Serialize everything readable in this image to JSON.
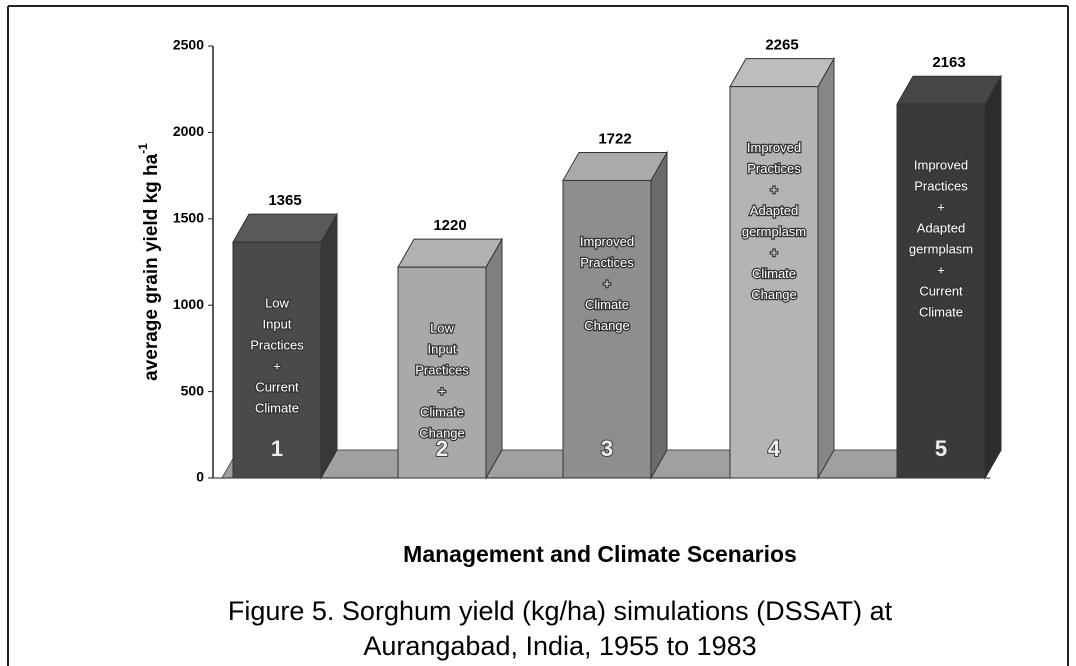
{
  "chart_data": {
    "type": "bar3d",
    "y_label": "average grain yield kg ha",
    "y_label_superscript": "-1",
    "x_label": "Management and Climate Scenarios",
    "caption": [
      "Figure 5. Sorghum yield (kg/ha) simulations (DSSAT) at",
      "Aurangabad, India, 1955 to 1983"
    ],
    "categories": [
      "1",
      "2",
      "3",
      "4",
      "5"
    ],
    "values": [
      1365,
      1220,
      1722,
      2265,
      2163
    ],
    "descriptions": [
      [
        "Low",
        "Input",
        "Practices",
        "+",
        "Current",
        "Climate"
      ],
      [
        "Low",
        "Input",
        "Practices",
        "+",
        "Climate",
        "Change"
      ],
      [
        "Improved",
        "Practices",
        "+",
        "Climate",
        "Change"
      ],
      [
        "Improved",
        "Practices",
        "+",
        "Adapted",
        "germplasm",
        "+",
        "Climate",
        "Change"
      ],
      [
        "Improved",
        "Practices",
        "+",
        "Adapted",
        "germplasm",
        "+",
        "Current",
        "Climate"
      ]
    ],
    "colors": [
      "#4a4a4a",
      "#a9a9a9",
      "#8e8e8e",
      "#b4b4b4",
      "#3a3a3a"
    ],
    "ylim": [
      0,
      2500
    ],
    "yticks": [
      0,
      500,
      1000,
      1500,
      2000,
      2500
    ]
  }
}
